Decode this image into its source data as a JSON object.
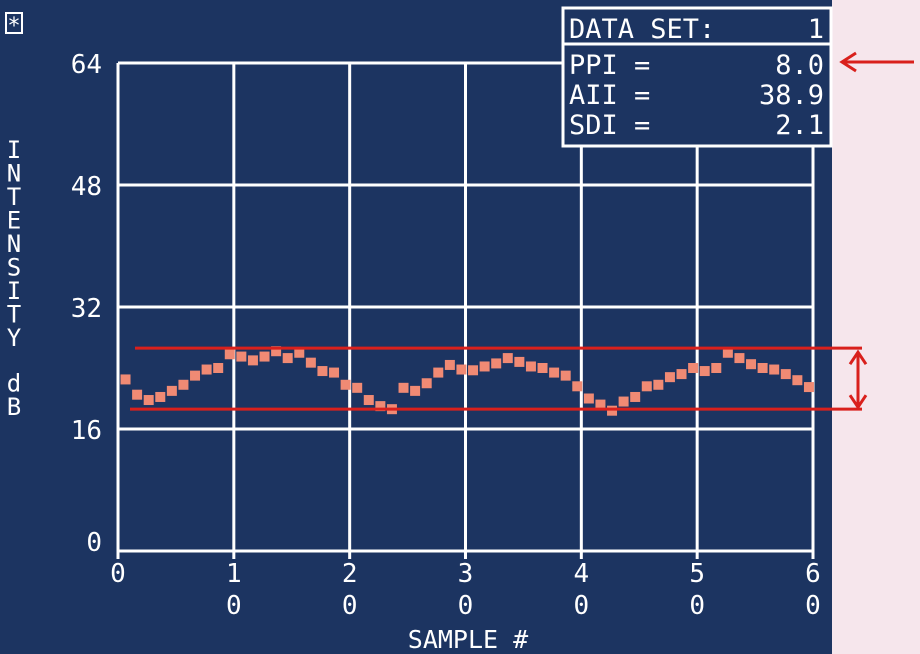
{
  "colors": {
    "panel": "#1c3461",
    "grid": "#ffffff",
    "marker": "#f08a74",
    "annotation": "#d9201c",
    "outside": "#f6e6ec"
  },
  "corner_glyph": "*",
  "info_box": {
    "rows": [
      {
        "label": "DATA SET:",
        "value": "1"
      },
      {
        "label": "PPI  =",
        "value": "8.0"
      },
      {
        "label": "AII  =",
        "value": "38.9"
      },
      {
        "label": "SDI  =",
        "value": "2.1"
      }
    ]
  },
  "chart_data": {
    "type": "scatter",
    "title": "",
    "xlabel": "SAMPLE #",
    "ylabel": "INTENSITY dB",
    "xlim": [
      0,
      60
    ],
    "ylim": [
      0,
      64
    ],
    "xticks": [
      {
        "value": 0,
        "line1": "0",
        "line2": ""
      },
      {
        "value": 10,
        "line1": "1",
        "line2": "0"
      },
      {
        "value": 20,
        "line1": "2",
        "line2": "0"
      },
      {
        "value": 30,
        "line1": "3",
        "line2": "0"
      },
      {
        "value": 40,
        "line1": "4",
        "line2": "0"
      },
      {
        "value": 50,
        "line1": "5",
        "line2": "0"
      },
      {
        "value": 60,
        "line1": "6",
        "line2": "0"
      }
    ],
    "yticks": [
      {
        "value": 0,
        "label": "0"
      },
      {
        "value": 16,
        "label": "16"
      },
      {
        "value": 32,
        "label": "32"
      },
      {
        "value": 48,
        "label": "48"
      },
      {
        "value": 64,
        "label": "64"
      }
    ],
    "grid": true,
    "legend": "none",
    "x": [
      1,
      2,
      3,
      4,
      5,
      6,
      7,
      8,
      9,
      10,
      11,
      12,
      13,
      14,
      15,
      16,
      17,
      18,
      19,
      20,
      21,
      22,
      23,
      24,
      25,
      26,
      27,
      28,
      29,
      30,
      31,
      32,
      33,
      34,
      35,
      36,
      37,
      38,
      39,
      40,
      41,
      42,
      43,
      44,
      45,
      46,
      47,
      48,
      49,
      50,
      51,
      52,
      53,
      54,
      55,
      56,
      57,
      58,
      59,
      60
    ],
    "y": [
      22.5,
      20.5,
      19.8,
      20.2,
      21.0,
      21.8,
      23.0,
      23.8,
      24.0,
      25.8,
      25.5,
      25.0,
      25.5,
      26.2,
      25.3,
      26.0,
      24.7,
      23.6,
      23.4,
      21.8,
      21.4,
      19.8,
      19.0,
      18.6,
      21.4,
      21.0,
      22.0,
      23.4,
      24.4,
      23.8,
      23.7,
      24.2,
      24.6,
      25.3,
      24.8,
      24.2,
      24.0,
      23.4,
      23.0,
      21.6,
      20.0,
      19.2,
      18.4,
      19.6,
      20.2,
      21.6,
      21.8,
      22.8,
      23.2,
      24.0,
      23.6,
      24.0,
      26.0,
      25.3,
      24.5,
      24.0,
      23.8,
      23.2,
      22.4,
      21.5
    ],
    "annotations": {
      "band_upper_db": 26.6,
      "band_lower_db": 18.6,
      "arrow_points_to": "PPI"
    }
  }
}
